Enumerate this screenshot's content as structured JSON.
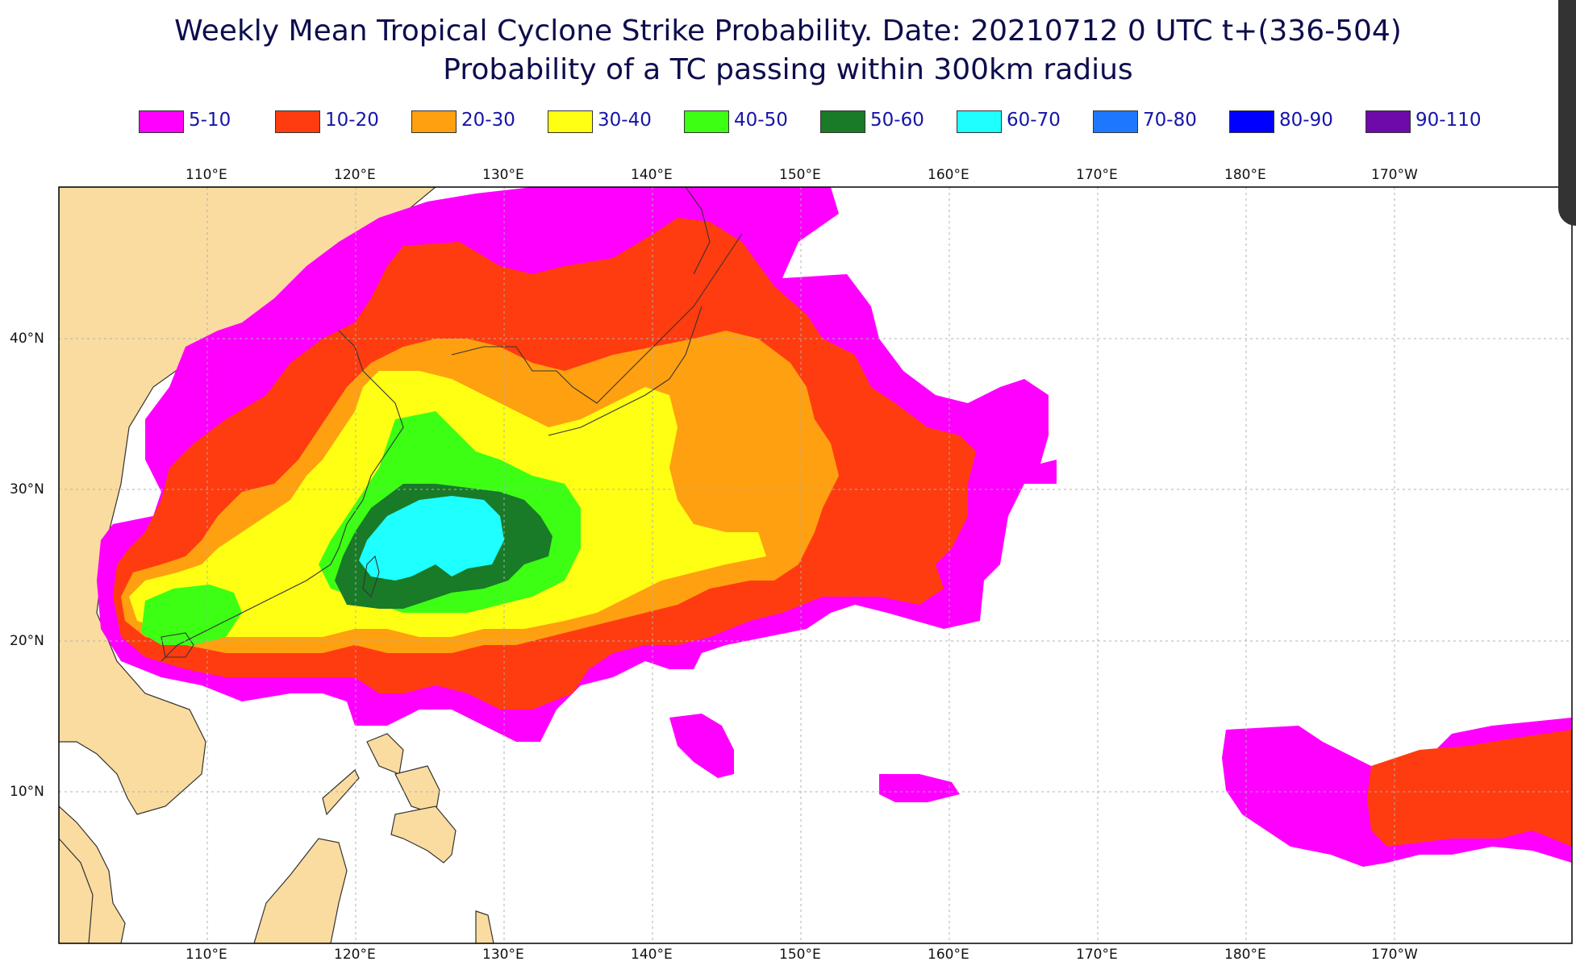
{
  "title": {
    "line1": "Weekly Mean Tropical Cyclone Strike Probability. Date: 20210712  0 UTC    t+(336-504)",
    "line2": "Probability of a TC passing within  300km radius"
  },
  "legend": [
    {
      "label": "5-10",
      "color": "#ff00ff"
    },
    {
      "label": "10-20",
      "color": "#ff3c0f"
    },
    {
      "label": "20-30",
      "color": "#ffa010"
    },
    {
      "label": "30-40",
      "color": "#ffff14"
    },
    {
      "label": "40-50",
      "color": "#3cff14"
    },
    {
      "label": "50-60",
      "color": "#197a28"
    },
    {
      "label": "60-70",
      "color": "#1effff"
    },
    {
      "label": "70-80",
      "color": "#1e78ff"
    },
    {
      "label": "80-90",
      "color": "#0000ff"
    },
    {
      "label": "90-110",
      "color": "#6e0aaa"
    }
  ],
  "map": {
    "lon_labels": [
      "110°E",
      "120°E",
      "130°E",
      "140°E",
      "150°E",
      "160°E",
      "170°E",
      "180°E",
      "170°W"
    ],
    "lat_labels": [
      "40°N",
      "30°N",
      "20°N",
      "10°N"
    ],
    "land_color": "#fadca0",
    "ocean_color": "#ffffff"
  }
}
